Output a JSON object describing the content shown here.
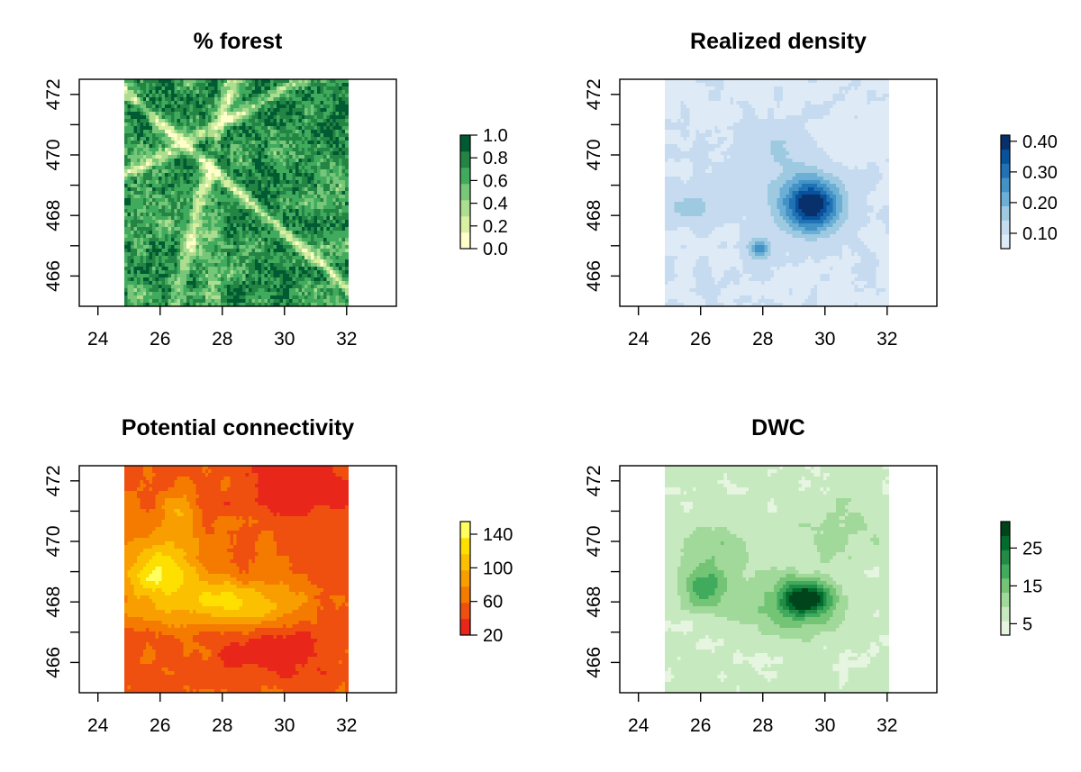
{
  "chart_data": [
    {
      "type": "heatmap",
      "title": "% forest",
      "xticks": [
        24,
        26,
        28,
        30,
        32
      ],
      "yticks": [
        466,
        468,
        470,
        472
      ],
      "xlim": [
        23.4,
        33.6
      ],
      "ylim": [
        465.0,
        472.5
      ],
      "extent": {
        "x": [
          24.85,
          32.05
        ],
        "y": [
          465.0,
          472.5
        ]
      },
      "grid": false,
      "legend": {
        "position": "right",
        "range": [
          0.0,
          1.0
        ],
        "ticks": [
          "0.0",
          "0.2",
          "0.4",
          "0.6",
          "0.8",
          "1.0"
        ],
        "colors": [
          "#ffffcc",
          "#d9f0a3",
          "#addd8e",
          "#78c679",
          "#41ab5d",
          "#238443",
          "#005a32"
        ]
      }
    },
    {
      "type": "heatmap",
      "title": "Realized density",
      "xticks": [
        24,
        26,
        28,
        30,
        32
      ],
      "yticks": [
        466,
        468,
        470,
        472
      ],
      "xlim": [
        23.4,
        33.6
      ],
      "ylim": [
        465.0,
        472.5
      ],
      "extent": {
        "x": [
          24.85,
          32.05
        ],
        "y": [
          465.0,
          472.5
        ]
      },
      "grid": false,
      "legend": {
        "position": "right",
        "range": [
          0.05,
          0.42
        ],
        "ticks": [
          "0.10",
          "0.20",
          "0.30",
          "0.40"
        ],
        "colors": [
          "#deebf7",
          "#c6dbef",
          "#9ecae1",
          "#6baed6",
          "#4292c6",
          "#2171b5",
          "#08519c",
          "#08306b"
        ]
      }
    },
    {
      "type": "heatmap",
      "title": "Potential connectivity",
      "xticks": [
        24,
        26,
        28,
        30,
        32
      ],
      "yticks": [
        466,
        468,
        470,
        472
      ],
      "xlim": [
        23.4,
        33.6
      ],
      "ylim": [
        465.0,
        472.5
      ],
      "extent": {
        "x": [
          24.85,
          32.05
        ],
        "y": [
          465.0,
          472.5
        ]
      },
      "grid": false,
      "legend": {
        "position": "right",
        "range": [
          20,
          155
        ],
        "ticks": [
          "20",
          "60",
          "100",
          "140"
        ],
        "colors": [
          "#e8261a",
          "#f0500f",
          "#f57a00",
          "#f89e00",
          "#fbc000",
          "#fde000",
          "#ffff60"
        ]
      }
    },
    {
      "type": "heatmap",
      "title": "DWC",
      "xticks": [
        24,
        26,
        28,
        30,
        32
      ],
      "yticks": [
        466,
        468,
        470,
        472
      ],
      "xlim": [
        23.4,
        33.6
      ],
      "ylim": [
        465.0,
        472.5
      ],
      "extent": {
        "x": [
          24.85,
          32.05
        ],
        "y": [
          465.0,
          472.5
        ]
      },
      "grid": false,
      "legend": {
        "position": "right",
        "range": [
          2,
          32
        ],
        "ticks": [
          "5",
          "15",
          "25"
        ],
        "colors": [
          "#e5f5e0",
          "#c7e9c0",
          "#a1d99b",
          "#74c476",
          "#41ab5d",
          "#238b45",
          "#006d2c",
          "#00441b"
        ]
      }
    }
  ]
}
